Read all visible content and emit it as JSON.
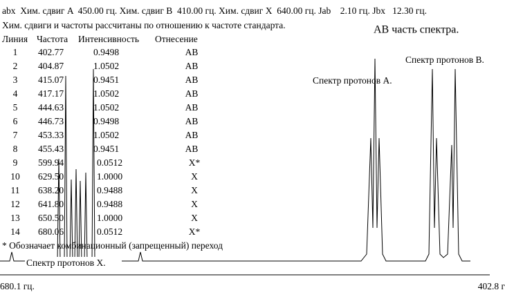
{
  "header": {
    "line1": "abx  Хим. сдвиг A  450.00 гц. Хим. сдвиг B  410.00 гц. Хим. сдвиг X  640.00 гц. Jab    2.10 гц. Jbx   12.30 гц.",
    "line2": "Хим. сдвиги и частоты рассчитаны по отношению к частоте стандарта."
  },
  "title": "АВ часть спектра.",
  "table": {
    "columns": [
      "Линия",
      "Частота",
      "Интенсивность",
      "Отнесение"
    ],
    "rows": [
      [
        "1",
        "402.77",
        "0.9498",
        "AB"
      ],
      [
        "2",
        "404.87",
        "1.0502",
        "AB"
      ],
      [
        "3",
        "415.07",
        "0.9451",
        "AB"
      ],
      [
        "4",
        "417.17",
        "1.0502",
        "AB"
      ],
      [
        "5",
        "444.63",
        "1.0502",
        "AB"
      ],
      [
        "6",
        "446.73",
        "0.9498",
        "AB"
      ],
      [
        "7",
        "453.33",
        "1.0502",
        "AB"
      ],
      [
        "8",
        "455.43",
        "0.9451",
        "AB"
      ],
      [
        "9",
        "599.94",
        "0.0512",
        "X*"
      ],
      [
        "10",
        "629.50",
        "1.0000",
        "X"
      ],
      [
        "11",
        "638.20",
        "0.9488",
        "X"
      ],
      [
        "12",
        "641.80",
        "0.9488",
        "X"
      ],
      [
        "13",
        "650.50",
        "1.0000",
        "X"
      ],
      [
        "14",
        "680.06",
        "0.0512",
        "X*"
      ]
    ]
  },
  "footnote": "* Обозначает комбинационный (запрещенный) переход",
  "spectrum_labels": {
    "proton_a": "Спектр протонов А.",
    "proton_b": "Спектр протонов В.",
    "proton_x": "Спектр протонов X."
  },
  "axis": {
    "left": "680.1 гц.",
    "right": "402.8 г"
  }
}
